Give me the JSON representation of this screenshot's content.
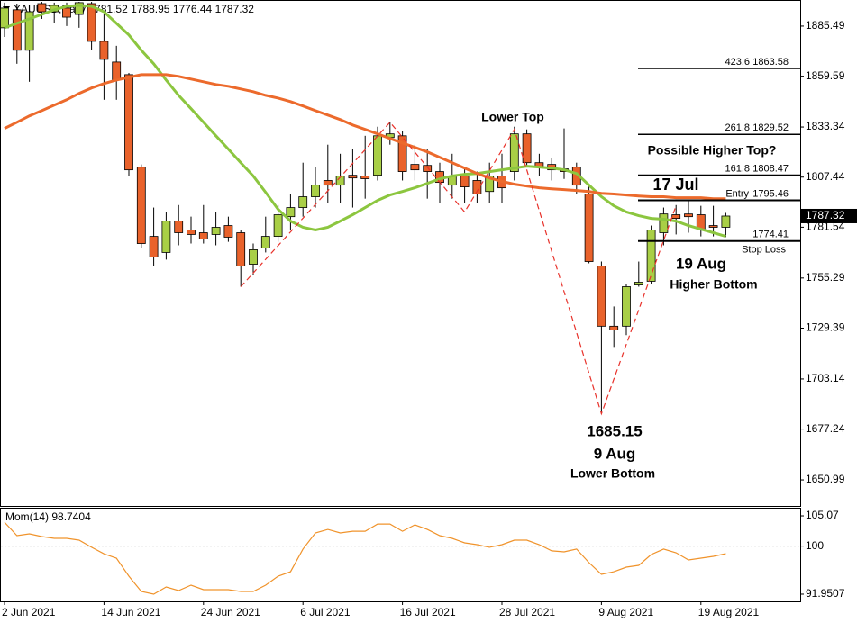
{
  "chart_data": [
    {
      "type": "candlestick",
      "symbol": "XAUUSD,Daily",
      "categories": [
        "2 Jun 2021",
        null,
        null,
        null,
        null,
        null,
        null,
        null,
        "14 Jun 2021",
        null,
        null,
        null,
        null,
        null,
        null,
        null,
        "24 Jun 2021",
        null,
        null,
        null,
        null,
        null,
        null,
        null,
        "6 Jul 2021",
        null,
        null,
        null,
        null,
        null,
        null,
        null,
        "16 Jul 2021",
        null,
        null,
        null,
        null,
        null,
        null,
        null,
        "28 Jul 2021",
        null,
        null,
        null,
        null,
        null,
        null,
        null,
        "9 Aug 2021",
        null,
        null,
        null,
        null,
        null,
        null,
        null,
        "19 Aug 2021",
        null,
        null
      ],
      "open": [
        1884.6,
        1893.9,
        1873.0,
        1897.1,
        1892.9,
        1894.8,
        1891.5,
        1897.1,
        1877.6,
        1866.9,
        1860.4,
        1812.6,
        1776.8,
        1768.5,
        1784.7,
        1780.1,
        1778.7,
        1777.8,
        1782.4,
        1778.7,
        1762.4,
        1770.8,
        1776.8,
        1787.0,
        1791.7,
        1797.3,
        1805.7,
        1803.3,
        1808.4,
        1808.0,
        1808.4,
        1827.9,
        1828.8,
        1814.0,
        1813.5,
        1810.3,
        1803.3,
        1808.0,
        1805.7,
        1800.0,
        1808.0,
        1810.3,
        1829.8,
        1814.9,
        1814.0,
        1811.7,
        1812.6,
        1798.7,
        1761.5,
        1730.4,
        1730.4,
        1751.7,
        1753.6,
        1778.7,
        1788.0,
        1788.4,
        1788.0,
        1782.4,
        1781.52
      ],
      "high": [
        1897.6,
        1897.1,
        1896.2,
        1898.0,
        1897.6,
        1897.6,
        1898.0,
        1898.0,
        1891.5,
        1875.3,
        1861.3,
        1814.0,
        1791.7,
        1789.4,
        1793.0,
        1787.0,
        1793.0,
        1789.4,
        1787.0,
        1780.1,
        1773.1,
        1787.0,
        1793.0,
        1798.7,
        1814.9,
        1812.6,
        1824.2,
        1819.5,
        1821.9,
        1828.8,
        1833.5,
        1835.8,
        1831.2,
        1824.2,
        1821.9,
        1814.9,
        1819.5,
        1812.6,
        1810.3,
        1814.9,
        1819.5,
        1833.5,
        1832.1,
        1819.5,
        1817.2,
        1832.6,
        1814.9,
        1803.3,
        1763.8,
        1740.6,
        1752.2,
        1763.8,
        1782.4,
        1791.7,
        1793.0,
        1795.4,
        1792.6,
        1792.6,
        1788.95
      ],
      "low": [
        1879.9,
        1866.0,
        1856.7,
        1889.2,
        1886.9,
        1885.5,
        1884.6,
        1873.0,
        1847.4,
        1847.4,
        1808.0,
        1770.8,
        1761.5,
        1764.8,
        1772.2,
        1773.1,
        1773.1,
        1772.2,
        1774.0,
        1750.8,
        1756.9,
        1768.5,
        1774.0,
        1780.1,
        1787.0,
        1791.7,
        1794.0,
        1794.0,
        1791.7,
        1796.3,
        1805.7,
        1824.2,
        1805.7,
        1805.7,
        1796.3,
        1794.0,
        1796.3,
        1794.0,
        1794.0,
        1794.0,
        1794.0,
        1805.7,
        1812.6,
        1808.0,
        1805.7,
        1806.5,
        1798.7,
        1762.9,
        1685.15,
        1719.7,
        1725.8,
        1750.8,
        1752.2,
        1772.2,
        1777.8,
        1778.7,
        1776.8,
        1776.8,
        1776.44
      ],
      "close": [
        1894.8,
        1873.0,
        1892.9,
        1892.9,
        1896.2,
        1890.1,
        1897.6,
        1877.6,
        1868.3,
        1857.6,
        1811.2,
        1773.1,
        1766.1,
        1784.7,
        1778.7,
        1777.8,
        1775.4,
        1781.5,
        1776.4,
        1761.5,
        1769.9,
        1776.8,
        1788.0,
        1791.7,
        1797.3,
        1803.3,
        1803.3,
        1808.0,
        1807.0,
        1806.6,
        1828.8,
        1829.8,
        1810.3,
        1811.2,
        1810.3,
        1804.7,
        1808.0,
        1802.4,
        1798.7,
        1808.0,
        1801.9,
        1829.8,
        1814.9,
        1812.6,
        1811.2,
        1810.3,
        1803.3,
        1763.8,
        1730.4,
        1728.5,
        1750.8,
        1753.1,
        1780.1,
        1788.4,
        1786.1,
        1787.0,
        1780.1,
        1781.5,
        1787.32
      ],
      "up_color": "#a9cf46",
      "down_color": "#e9622b",
      "lines": [
        {
          "color": "#8cc63f",
          "values": [
            1884.6,
            1886.9,
            1889.2,
            1891.5,
            1893.9,
            1895.7,
            1896.2,
            1895.7,
            1892.9,
            1886.9,
            1880.9,
            1873.0,
            1866.0,
            1857.6,
            1849.7,
            1842.8,
            1835.8,
            1828.8,
            1821.9,
            1814.9,
            1808.0,
            1799.6,
            1790.8,
            1784.7,
            1781.5,
            1780.1,
            1781.5,
            1784.7,
            1788.0,
            1791.7,
            1795.4,
            1798.2,
            1800.0,
            1801.9,
            1804.2,
            1806.5,
            1808.0,
            1808.9,
            1809.3,
            1810.3,
            1811.2,
            1812.1,
            1813.1,
            1812.6,
            1812.1,
            1811.2,
            1809.3,
            1803.3,
            1797.3,
            1792.6,
            1789.4,
            1787.5,
            1786.1,
            1785.7,
            1784.7,
            1782.4,
            1780.5,
            1778.7,
            1776.8
          ]
        },
        {
          "color": "#ec6a2c",
          "values": [
            1832.6,
            1835.8,
            1839.1,
            1841.8,
            1844.6,
            1847.4,
            1850.7,
            1853.5,
            1855.8,
            1857.6,
            1859.0,
            1860.4,
            1860.4,
            1860.4,
            1859.5,
            1858.1,
            1856.7,
            1855.3,
            1854.4,
            1853.0,
            1851.6,
            1849.7,
            1848.3,
            1846.5,
            1844.2,
            1841.8,
            1839.5,
            1837.2,
            1834.4,
            1832.1,
            1829.8,
            1827.4,
            1825.1,
            1822.8,
            1820.5,
            1817.7,
            1814.9,
            1812.1,
            1809.3,
            1807.0,
            1805.2,
            1803.8,
            1802.8,
            1801.9,
            1801.4,
            1801.0,
            1800.5,
            1800.0,
            1799.1,
            1798.7,
            1798.2,
            1797.7,
            1797.3,
            1797.3,
            1796.8,
            1796.8,
            1796.8,
            1796.3,
            1796.3
          ]
        }
      ],
      "ylim": [
        1637.52,
        1898.49
      ],
      "yticks": [
        1885.49,
        1859.59,
        1833.34,
        1807.44,
        1781.54,
        1755.29,
        1729.39,
        1703.14,
        1677.24,
        1650.99
      ],
      "fib_levels": [
        {
          "ratio": 423.6,
          "value": 1863.58
        },
        {
          "ratio": 261.8,
          "value": 1829.52
        },
        {
          "ratio": 161.8,
          "value": 1808.47
        },
        {
          "label": "Entry",
          "value": 1795.46
        },
        {
          "label": "Stop Loss",
          "value": 1774.41
        }
      ],
      "zigzag": {
        "color": "#e8322b",
        "x": [
          19,
          31,
          37,
          41,
          48,
          54
        ],
        "values": [
          1750.8,
          1835.8,
          1789.4,
          1832.1,
          1685.15,
          1792.6
        ]
      },
      "annotations": {
        "lower_top": "Lower Top",
        "possible_higher_top": "Possible Higher Top?",
        "jul17": "17 Jul",
        "aug19": "19 Aug",
        "higher_bottom": "Higher Bottom",
        "aug9": "9 Aug",
        "lower_bottom": "Lower Bottom"
      }
    },
    {
      "type": "line",
      "title": "Mom(14)",
      "color": "#f0932b",
      "values": [
        104.0,
        101.75,
        102.05,
        101.6,
        101.3,
        101.3,
        101.0,
        99.8,
        98.7,
        97.98,
        94.97,
        92.4,
        91.95,
        93.15,
        92.55,
        93.46,
        92.7,
        92.7,
        92.7,
        92.4,
        92.4,
        93.46,
        94.97,
        95.7,
        99.5,
        102.2,
        102.8,
        102.2,
        102.5,
        102.5,
        103.7,
        103.7,
        102.5,
        103.56,
        102.8,
        101.75,
        101.3,
        100.55,
        100.24,
        99.8,
        100.24,
        101.0,
        101.0,
        100.24,
        99.2,
        99.04,
        99.5,
        97.23,
        95.27,
        95.7,
        96.47,
        96.77,
        98.58,
        99.5,
        98.89,
        97.68,
        97.98,
        98.28,
        98.7404
      ],
      "ylim": [
        90.74,
        106.28
      ],
      "yticks": [
        105.07,
        100,
        91.9507
      ],
      "levels": [
        100
      ]
    }
  ]
}
